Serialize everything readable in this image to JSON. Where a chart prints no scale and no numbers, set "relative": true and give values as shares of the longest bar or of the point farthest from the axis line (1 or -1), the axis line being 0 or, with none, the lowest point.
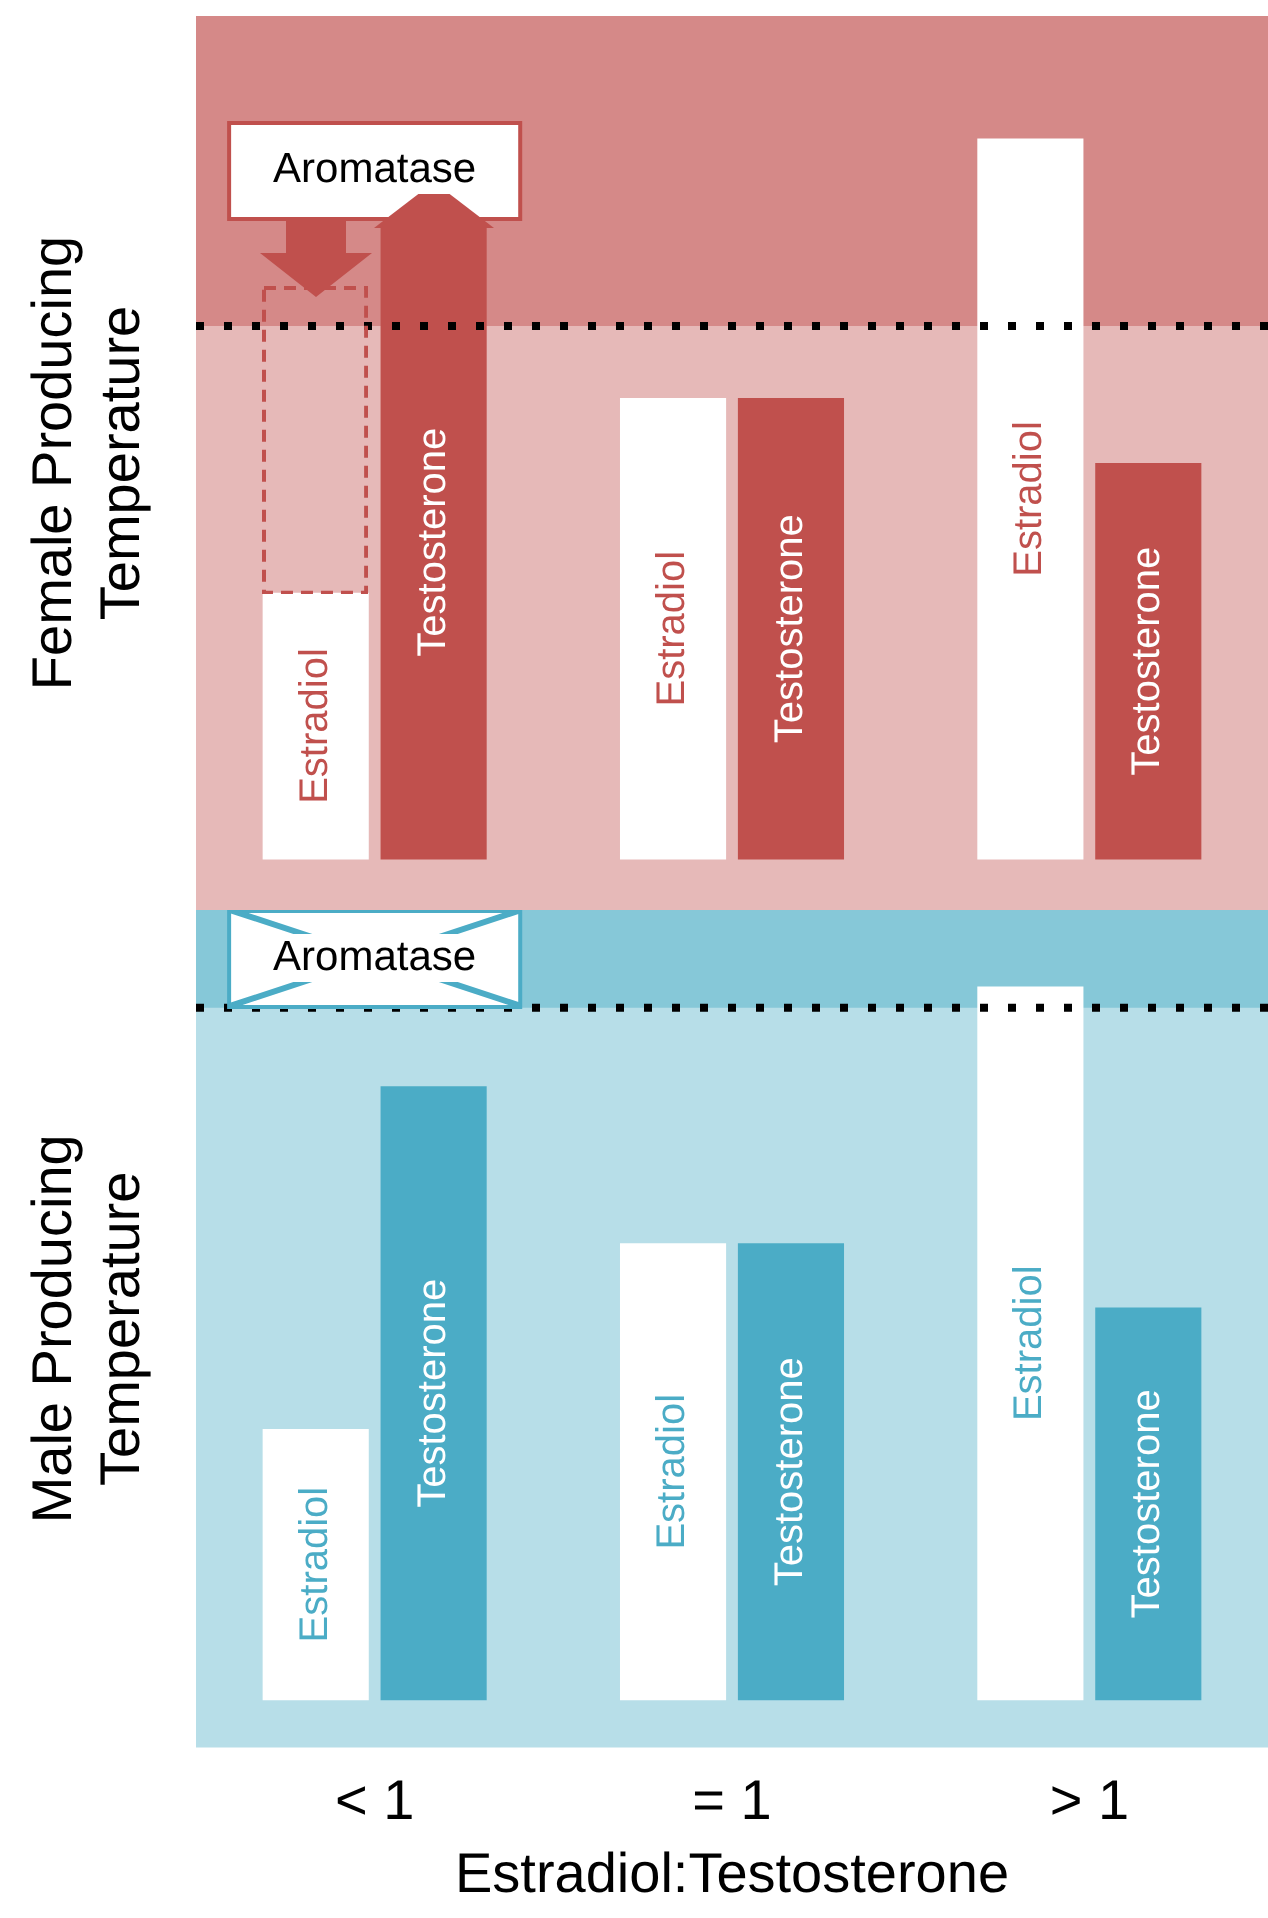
{
  "chart_data": [
    {
      "type": "bar",
      "ylabel": "Female Producing Temperature",
      "categories": [
        null,
        null,
        null
      ],
      "relative": true,
      "legend": false,
      "tick_labels": false,
      "series": [
        {
          "name": "Estradiol",
          "color": "#ffffff",
          "values": [
            0.37,
            0.64,
            1
          ]
        },
        {
          "name": "Testosterone",
          "color": "#c0504d",
          "values": [
            0.88,
            0.64,
            0.55
          ]
        }
      ],
      "ref_lines": [
        {
          "axis": "y",
          "value": 0.74,
          "color": "#000000",
          "line_style": "dotted"
        }
      ],
      "bands": [
        {
          "axis": "y",
          "from": 0.74,
          "to": 1.17,
          "color": "#c0504d"
        }
      ],
      "annotations": [
        "Aromatase"
      ]
    },
    {
      "type": "bar",
      "ylabel": "Male Producing Temperature",
      "xlabel": "Estradiol:Testosterone",
      "categories": [
        "< 1",
        "= 1",
        "> 1"
      ],
      "relative": true,
      "legend": false,
      "series": [
        {
          "name": "Estradiol",
          "color": "#ffffff",
          "values": [
            0.38,
            0.64,
            1
          ]
        },
        {
          "name": "Testosterone",
          "color": "#4bacc6",
          "values": [
            0.86,
            0.64,
            0.55
          ]
        }
      ],
      "ref_lines": [
        {
          "axis": "y",
          "value": 0.97,
          "color": "#000000",
          "line_style": "dotted"
        }
      ],
      "bands": [
        {
          "axis": "y",
          "from": 0.97,
          "to": 1.107,
          "color": "#4bacc6"
        }
      ],
      "annotations": [
        "Aromatase"
      ]
    }
  ]
}
